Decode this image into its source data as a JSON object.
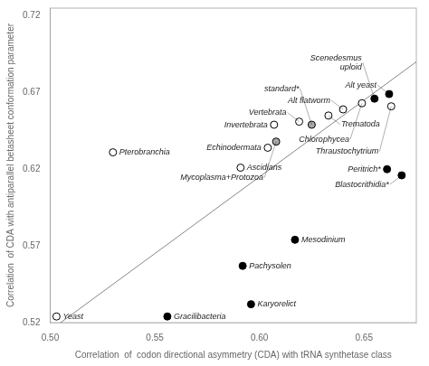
{
  "chart_data": {
    "type": "scatter",
    "xlabel": "Correlation  of  codon directional asymmetry (CDA) with tRNA synthetase class",
    "ylabel": "Correlation  of CDA with antiparallel betasheet conformation parameter",
    "xlim": [
      0.5,
      0.675
    ],
    "ylim": [
      0.52,
      0.725
    ],
    "xticks": [
      {
        "value": 0.5,
        "label": "0.50"
      },
      0.55,
      {
        "value": 0.6,
        "label": "0.60"
      },
      0.65
    ],
    "yticks": [
      0.52,
      0.57,
      0.62,
      0.67,
      0.72
    ],
    "grid": false,
    "series": [
      {
        "type": "line",
        "color": "#888888",
        "x": [
          0.505,
          0.675
        ],
        "values": [
          0.52,
          0.69
        ]
      },
      {
        "type": "scatter",
        "marker": "circle",
        "x": [
          0.503,
          0.556,
          0.596,
          0.592,
          0.617,
          0.661,
          0.668,
          0.662,
          0.655,
          0.649,
          0.663,
          0.64,
          0.633,
          0.619,
          0.607,
          0.625,
          0.608,
          0.604,
          0.591,
          0.53
        ],
        "values": [
          0.524,
          0.524,
          0.532,
          0.557,
          0.574,
          0.62,
          0.616,
          0.669,
          0.666,
          0.663,
          0.661,
          0.659,
          0.655,
          0.651,
          0.649,
          0.649,
          0.638,
          0.634,
          0.621,
          0.631
        ],
        "colors": [
          "white",
          "black",
          "black",
          "black",
          "black",
          "black",
          "black",
          "black",
          "black",
          "white",
          "white",
          "white",
          "white",
          "white",
          "white",
          "#aaaaaa",
          "#aaaaaa",
          "white",
          "white",
          "white"
        ],
        "labels": [
          "Yeast",
          "Gracilibacteria",
          "Karyorelict",
          "Pachysolen",
          "Mesodinium",
          "Peritrich*",
          "Blastocrithidia*",
          "Alt yeast",
          "Scenedesmus\nuploid",
          "Chlorophycea",
          "Thraustochytrium",
          "Alt flatworm",
          "Trematoda",
          "Vertebrata",
          "Invertebrata",
          "standard*",
          "Mycoplasma+Protozoa",
          "Echinodermata",
          "Ascidians",
          "Pterobranchia"
        ]
      }
    ]
  }
}
